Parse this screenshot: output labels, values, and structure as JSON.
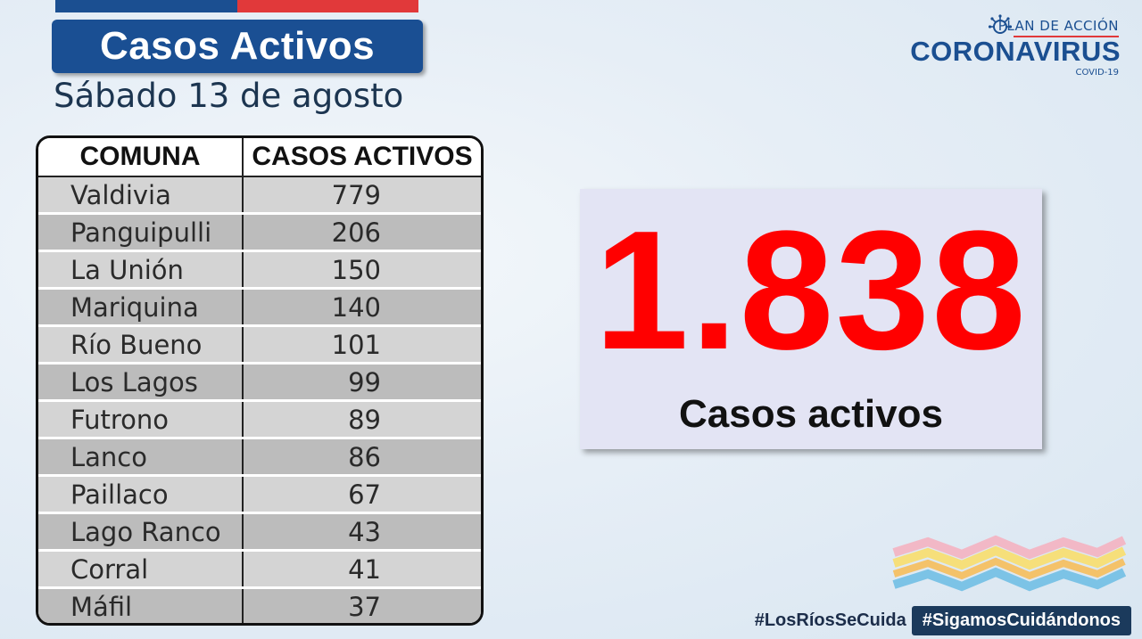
{
  "header": {
    "title": "Casos Activos",
    "date": "Sábado 13 de agosto"
  },
  "logo": {
    "plan": "PLAN DE ACCIÓN",
    "main": "CORONAVIRUS",
    "sub": "COVID-19",
    "icon": "virus-icon"
  },
  "table": {
    "headers": [
      "COMUNA",
      "CASOS ACTIVOS"
    ],
    "rows": [
      {
        "comuna": "Valdivia",
        "casos": "779"
      },
      {
        "comuna": "Panguipulli",
        "casos": "206"
      },
      {
        "comuna": "La Unión",
        "casos": "150"
      },
      {
        "comuna": "Mariquina",
        "casos": "140"
      },
      {
        "comuna": "Río Bueno",
        "casos": "101"
      },
      {
        "comuna": "Los Lagos",
        "casos": "99"
      },
      {
        "comuna": "Futrono",
        "casos": "89"
      },
      {
        "comuna": "Lanco",
        "casos": "86"
      },
      {
        "comuna": "Paillaco",
        "casos": "67"
      },
      {
        "comuna": "Lago Ranco",
        "casos": "43"
      },
      {
        "comuna": "Corral",
        "casos": "41"
      },
      {
        "comuna": "Máfil",
        "casos": "37"
      }
    ]
  },
  "total": {
    "value": "1.838",
    "label": "Casos activos",
    "color": "#ff0000"
  },
  "hashtags": [
    "#LosRíosSeCuida",
    "#SigamosCuidándonos"
  ],
  "colors": {
    "brand_blue": "#1a4f93",
    "brand_red": "#e1393a"
  }
}
